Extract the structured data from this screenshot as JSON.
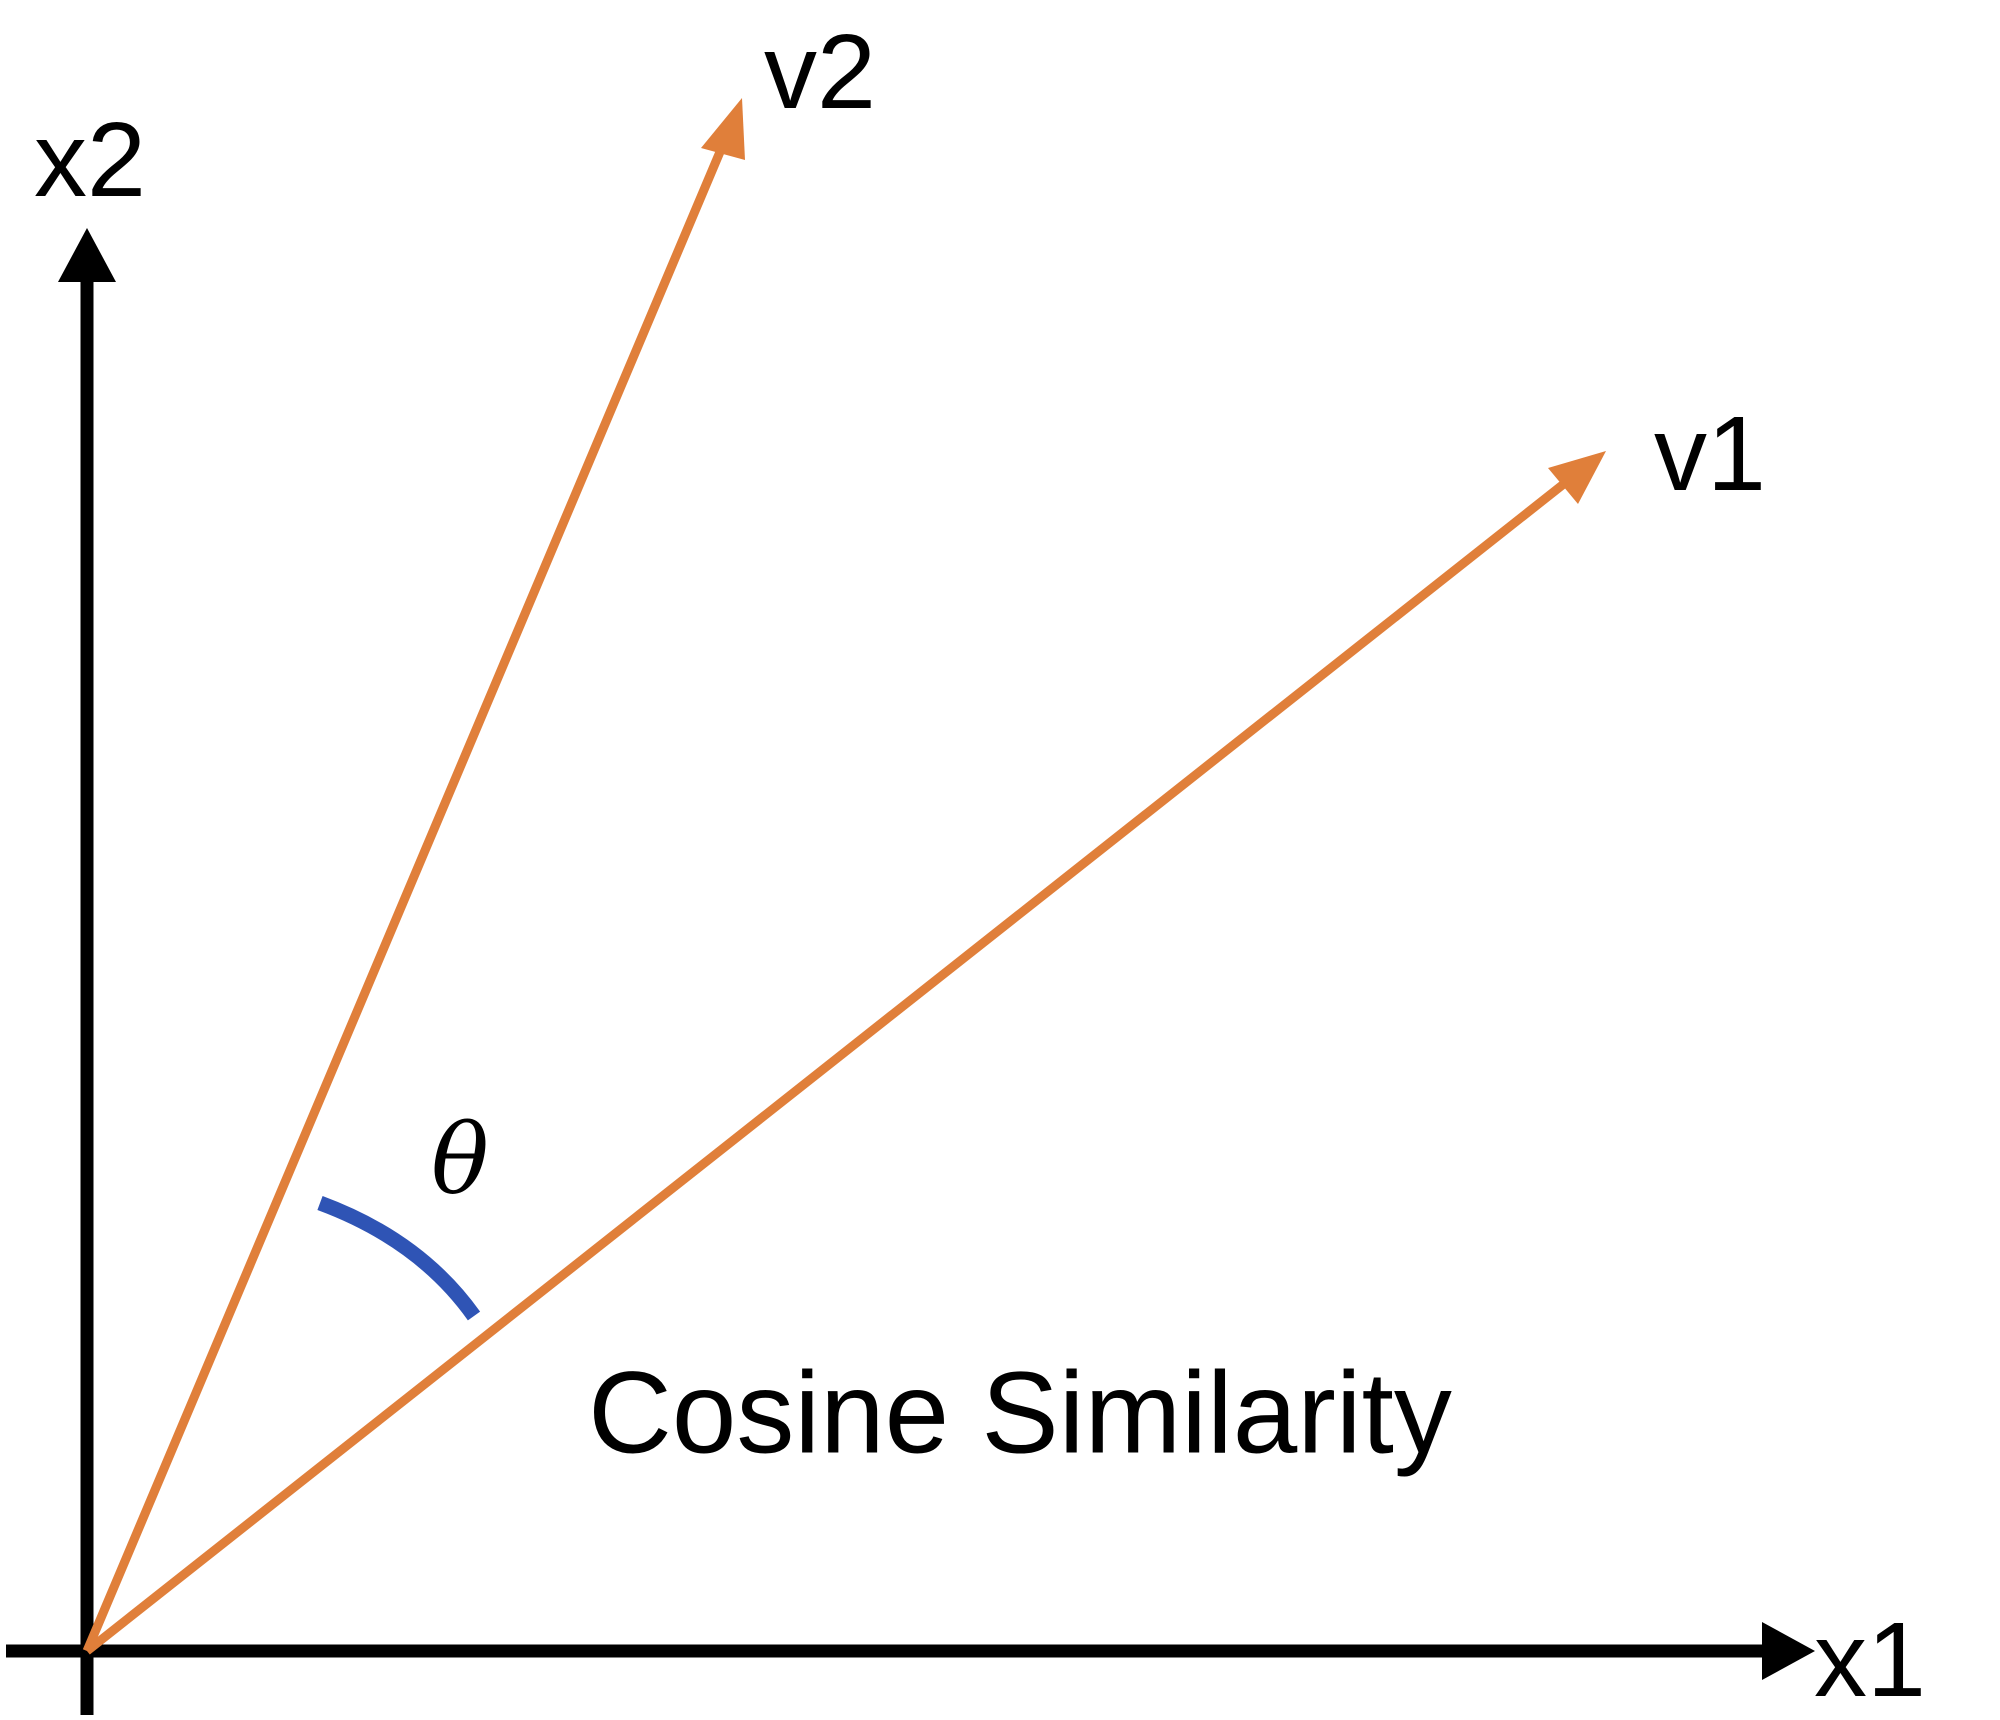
{
  "axes": {
    "x": "x1",
    "y": "x2"
  },
  "vectors": [
    {
      "label": "v1"
    },
    {
      "label": "v2"
    }
  ],
  "angle": "θ",
  "caption": "Cosine Similarity"
}
